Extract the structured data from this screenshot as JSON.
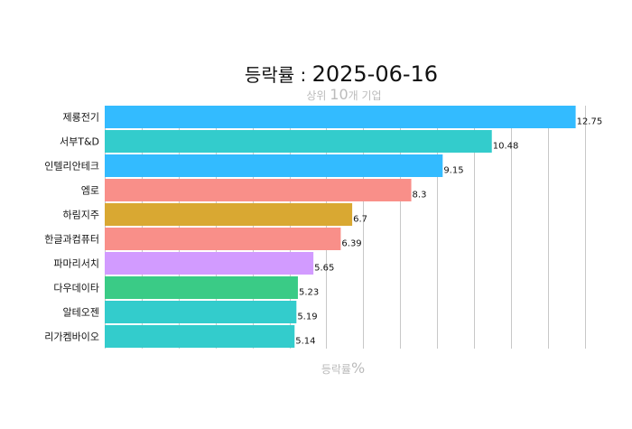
{
  "chart_data": {
    "type": "bar",
    "orientation": "horizontal",
    "title": {
      "prefix": "등락률 : ",
      "date": "2025-06-16"
    },
    "subtitle": {
      "before": "상위 ",
      "number": "10",
      "after": "개 기업"
    },
    "xlabel": {
      "text": "등락률",
      "unit": "%"
    },
    "categories": [
      "제룡전기",
      "서부T&D",
      "인텔리안테크",
      "엠로",
      "하림지주",
      "한글과컴퓨터",
      "파마리서치",
      "다우데이타",
      "알테오젠",
      "리가켐바이오"
    ],
    "values": [
      12.75,
      10.48,
      9.15,
      8.3,
      6.7,
      6.39,
      5.65,
      5.23,
      5.19,
      5.14
    ],
    "value_labels": [
      "12.75",
      "10.48",
      "9.15",
      "8.3",
      "6.7",
      "6.39",
      "5.65",
      "5.23",
      "5.19",
      "5.14"
    ],
    "colors": [
      "#33bbff",
      "#33cccc",
      "#33bbff",
      "#f98f89",
      "#d9a832",
      "#f98f89",
      "#d29bff",
      "#3acb86",
      "#33cccc",
      "#33cccc"
    ],
    "xlim": [
      0,
      13.2
    ],
    "grid_x": true,
    "grid_step": 1,
    "legend": "none"
  }
}
